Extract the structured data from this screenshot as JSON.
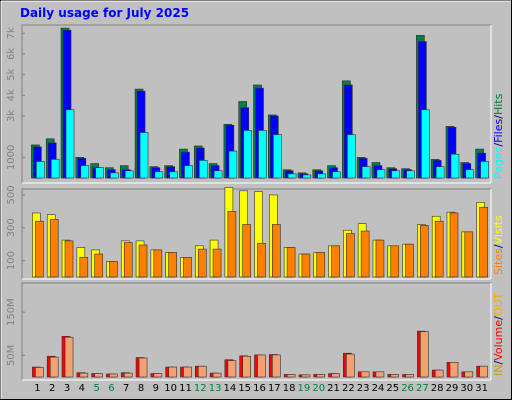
{
  "chart_data": {
    "type": "bar",
    "title": "Daily usage for July 2025",
    "categories": [
      "1",
      "2",
      "3",
      "4",
      "5",
      "6",
      "7",
      "8",
      "9",
      "10",
      "11",
      "12",
      "13",
      "14",
      "15",
      "16",
      "17",
      "18",
      "19",
      "20",
      "21",
      "22",
      "23",
      "24",
      "25",
      "26",
      "27",
      "28",
      "29",
      "30",
      "31"
    ],
    "category_colors": [
      "#000000",
      "#000000",
      "#000000",
      "#000000",
      "#008040",
      "#008040",
      "#000000",
      "#000000",
      "#000000",
      "#000000",
      "#000000",
      "#008040",
      "#008040",
      "#000000",
      "#000000",
      "#000000",
      "#000000",
      "#000000",
      "#008040",
      "#008040",
      "#000000",
      "#000000",
      "#000000",
      "#000000",
      "#000000",
      "#008040",
      "#008040",
      "#000000",
      "#000000",
      "#000000",
      "#000000"
    ],
    "separator": "/",
    "panels": [
      {
        "ylim": [
          0,
          7400
        ],
        "yticks": [
          1000,
          {
            "value": 3000,
            "label": "3k"
          },
          {
            "value": 4000,
            "label": "4k"
          },
          {
            "value": 5000,
            "label": "5k"
          },
          {
            "value": 6000,
            "label": "6k"
          },
          {
            "value": 7000,
            "label": "7k"
          }
        ],
        "series": [
          {
            "name": "Hits",
            "color": "#008040",
            "values": [
              1600,
              1900,
              7250,
              1000,
              700,
              500,
              600,
              4300,
              550,
              600,
              1400,
              1550,
              700,
              2600,
              3700,
              4500,
              3050,
              400,
              250,
              400,
              600,
              4700,
              1000,
              750,
              500,
              450,
              6900,
              900,
              2500,
              750,
              1400
            ]
          },
          {
            "name": "Files",
            "color": "#0000FF",
            "values": [
              1500,
              1700,
              7150,
              950,
              500,
              400,
              400,
              4200,
              500,
              550,
              1250,
              1450,
              600,
              2550,
              3400,
              4350,
              3000,
              350,
              200,
              350,
              500,
              4500,
              950,
              600,
              450,
              400,
              6600,
              850,
              2450,
              700,
              1200
            ]
          },
          {
            "name": "Pages",
            "color": "#00FFFF",
            "values": [
              800,
              900,
              3300,
              600,
              500,
              250,
              350,
              2200,
              300,
              300,
              600,
              850,
              350,
              1300,
              2300,
              2300,
              2100,
              200,
              150,
              200,
              300,
              2100,
              550,
              400,
              350,
              350,
              3300,
              550,
              1150,
              400,
              800
            ]
          }
        ]
      },
      {
        "ylim": [
          0,
          530
        ],
        "yticks": [
          100,
          300,
          500
        ],
        "series": [
          {
            "name": "Visits",
            "color": "#FFFF00",
            "values": [
              390,
              380,
              225,
              180,
              165,
              95,
              220,
              220,
              165,
              150,
              120,
              190,
              225,
              545,
              525,
              520,
              500,
              180,
              140,
              150,
              190,
              285,
              325,
              225,
              190,
              200,
              320,
              370,
              395,
              275,
              455
            ]
          },
          {
            "name": "Sites",
            "color": "#FF8000",
            "values": [
              340,
              350,
              220,
              120,
              140,
              95,
              210,
              195,
              165,
              150,
              120,
              170,
              170,
              400,
              320,
              205,
              320,
              180,
              140,
              150,
              190,
              265,
              280,
              225,
              190,
              200,
              315,
              340,
              390,
              275,
              425
            ]
          }
        ]
      },
      {
        "ylim": [
          0,
          215
        ],
        "yticks": [
          {
            "value": 50,
            "label": "50M"
          },
          {
            "value": 150,
            "label": "150M"
          }
        ],
        "legend_extra": [
          {
            "name": "OUT",
            "color": "#FFA500"
          }
        ],
        "series": [
          {
            "name": "Volume",
            "color": "#FF0000",
            "values": [
              23,
              48,
              94,
              10,
              8,
              7,
              10,
              45,
              8,
              23,
              23,
              25,
              9,
              40,
              49,
              51,
              52,
              6,
              5,
              6,
              8,
              55,
              12,
              12,
              6,
              6,
              106,
              16,
              34,
              12,
              25
            ]
          },
          {
            "name": "IN",
            "color": "#C8A000",
            "bar_color": "#F4A070",
            "values": [
              22,
              46,
              92,
              9,
              8,
              7,
              9,
              44,
              8,
              23,
              23,
              25,
              9,
              38,
              48,
              51,
              51,
              6,
              5,
              6,
              8,
              53,
              12,
              12,
              6,
              6,
              105,
              16,
              34,
              12,
              25
            ]
          }
        ]
      }
    ]
  }
}
